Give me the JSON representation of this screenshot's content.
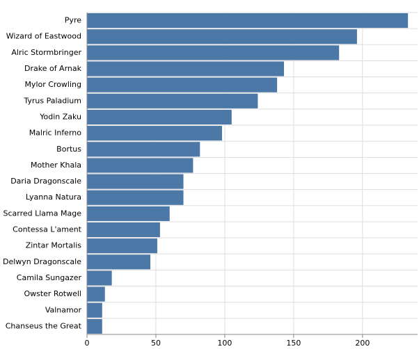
{
  "chart_data": {
    "type": "hbar",
    "categories": [
      "Pyre",
      "Wizard of Eastwood",
      "Alric Stormbringer",
      "Drake of Arnak",
      "Mylor Crowling",
      "Tyrus Paladium",
      "Yodin Zaku",
      "Malric Inferno",
      "Bortus",
      "Mother Khala",
      "Daria Dragonscale",
      "Lyanna Natura",
      "Scarred Llama Mage",
      "Contessa L'ament",
      "Zintar Mortalis",
      "Delwyn Dragonscale",
      "Camila Sungazer",
      "Owster Rotwell",
      "Valnamor",
      "Chanseus the Great"
    ],
    "values": [
      233,
      196,
      183,
      143,
      138,
      124,
      105,
      98,
      82,
      77,
      70,
      70,
      60,
      53,
      51,
      46,
      18,
      13,
      11,
      11
    ],
    "color": "#4c78a8",
    "xlim": [
      0,
      240
    ],
    "xticks": [
      0,
      50,
      100,
      150,
      200
    ],
    "grid": true
  }
}
